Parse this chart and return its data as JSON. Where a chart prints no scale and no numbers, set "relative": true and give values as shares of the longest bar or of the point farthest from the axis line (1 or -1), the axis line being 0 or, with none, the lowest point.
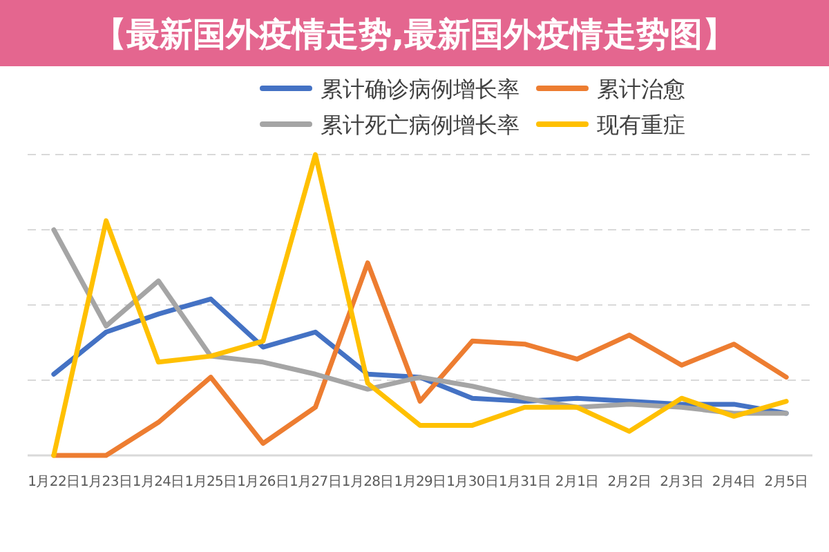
{
  "chart_data": {
    "type": "line",
    "title": "【最新国外疫情走势,最新国外疫情走势图】",
    "relative": true,
    "grid": "y",
    "legend": "top right",
    "categories": [
      "1月22日",
      "1月23日",
      "1月24日",
      "1月25日",
      "1月26日",
      "1月27日",
      "1月28日",
      "1月29日",
      "1月30日",
      "1月31日",
      "2月1日",
      "2月2日",
      "2月3日",
      "2月4日",
      "2月5日"
    ],
    "series": [
      {
        "name": "累计确诊病例增长率",
        "color": "#4472c4",
        "values": [
          0.27,
          0.41,
          0.47,
          0.52,
          0.36,
          0.41,
          0.27,
          0.26,
          0.19,
          0.18,
          0.19,
          0.18,
          0.17,
          0.17,
          0.14
        ]
      },
      {
        "name": "累计治愈",
        "color": "#ed7d31",
        "values": [
          0,
          0,
          0.11,
          0.26,
          0.04,
          0.16,
          0.64,
          0.18,
          0.38,
          0.37,
          0.32,
          0.4,
          0.3,
          0.37,
          0.26
        ]
      },
      {
        "name": "累计死亡病例增长率",
        "color": "#a5a5a5",
        "values": [
          0.75,
          0.43,
          0.58,
          0.33,
          0.31,
          0.27,
          0.22,
          0.26,
          0.23,
          0.19,
          0.16,
          0.17,
          0.16,
          0.14,
          0.14
        ]
      },
      {
        "name": "现有重症",
        "color": "#ffc000",
        "values": [
          0,
          0.78,
          0.31,
          0.33,
          0.38,
          1,
          0.24,
          0.1,
          0.1,
          0.16,
          0.16,
          0.08,
          0.19,
          0.13,
          0.18
        ]
      }
    ]
  }
}
